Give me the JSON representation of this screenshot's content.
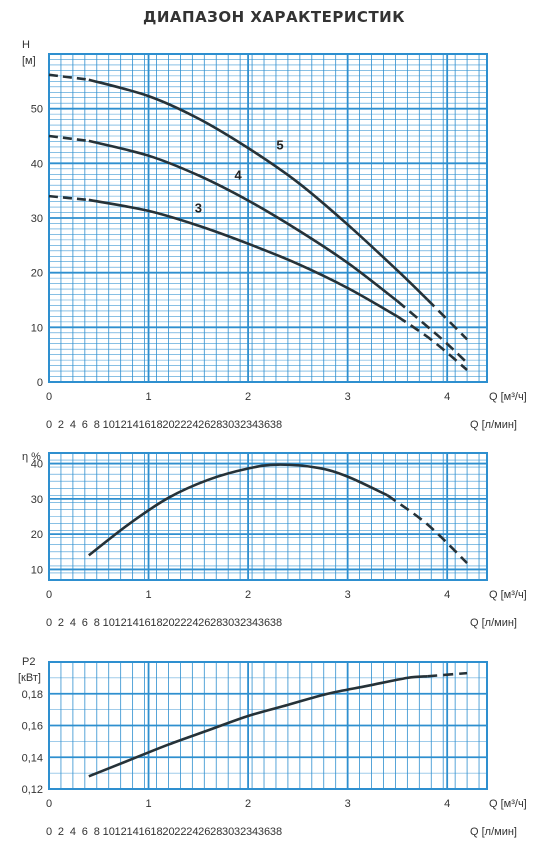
{
  "title": "ДИАПАЗОН ХАРАКТЕРИСТИК",
  "colors": {
    "grid": "#2e8fcf",
    "curve": "#263238"
  },
  "q_m3h": {
    "label": "Q [м³/ч]",
    "ticks": [
      "0",
      "1",
      "2",
      "3",
      "4"
    ]
  },
  "q_lmin": {
    "label": "Q [л/мин]",
    "ticks": [
      "0",
      "2",
      "4",
      "6",
      "8",
      "10",
      "12",
      "14",
      "16",
      "18",
      "20",
      "22",
      "24",
      "26",
      "28",
      "30",
      "32",
      "34",
      "36",
      "38"
    ]
  },
  "chart_data": [
    {
      "type": "line",
      "ylabel": "H",
      "yunit": "[м]",
      "xlabel": "Q [м³/ч]",
      "xlim": [
        0,
        4.4
      ],
      "ylim": [
        0,
        60
      ],
      "yticks": [
        "0",
        "10",
        "20",
        "30",
        "40",
        "50"
      ],
      "grid": true,
      "series": [
        {
          "name": "3",
          "x": [
            0,
            0.4,
            1.0,
            1.5,
            2.0,
            2.5,
            3.0,
            3.5,
            3.85,
            4.2
          ],
          "y": [
            34,
            33.3,
            31.3,
            28.6,
            25.3,
            21.6,
            17.2,
            12.0,
            7.6,
            2.2
          ],
          "dash_from": 3.8,
          "label_at": [
            1.5,
            31
          ]
        },
        {
          "name": "4",
          "x": [
            0,
            0.4,
            1.0,
            1.5,
            2.0,
            2.5,
            3.0,
            3.5,
            3.95,
            4.2
          ],
          "y": [
            45,
            44.1,
            41.4,
            37.8,
            33.2,
            27.8,
            21.8,
            14.8,
            7.8,
            3.5
          ],
          "dash_from": 3.8,
          "label_at": [
            1.9,
            37
          ]
        },
        {
          "name": "5",
          "x": [
            0,
            0.4,
            1.0,
            1.5,
            2.0,
            2.5,
            3.0,
            3.5,
            3.8,
            4.2
          ],
          "y": [
            56.2,
            55.3,
            52.3,
            48.2,
            42.8,
            36.5,
            28.8,
            20.4,
            15.1,
            7.8
          ],
          "dash_from": 3.8,
          "label_at": [
            2.32,
            42.5
          ]
        }
      ]
    },
    {
      "type": "line",
      "ylabel": "η %",
      "xlabel": "Q [м³/ч]",
      "xlim": [
        0,
        4.4
      ],
      "ylim": [
        7,
        43
      ],
      "yticks": [
        "10",
        "20",
        "30",
        "40"
      ],
      "grid": true,
      "series": [
        {
          "x": [
            0.4,
            0.8,
            1.2,
            1.6,
            2.0,
            2.3,
            2.7,
            3.0,
            3.4,
            3.8,
            4.2
          ],
          "y": [
            14,
            22.8,
            30.3,
            35.4,
            38.6,
            39.7,
            38.8,
            36.3,
            31.0,
            22.8,
            11.8
          ],
          "dash_from": 3.75
        }
      ]
    },
    {
      "type": "line",
      "ylabel": "P2",
      "yunit": "[кВт]",
      "xlabel": "Q [м³/ч]",
      "xlim": [
        0,
        4.4
      ],
      "ylim": [
        0.12,
        0.2
      ],
      "yticks": [
        "0,12",
        "0,14",
        "0,16",
        "0,18"
      ],
      "grid": true,
      "series": [
        {
          "x": [
            0.4,
            0.8,
            1.2,
            1.6,
            2.0,
            2.4,
            2.8,
            3.2,
            3.6,
            3.8,
            4.2
          ],
          "y": [
            0.128,
            0.138,
            0.148,
            0.157,
            0.166,
            0.173,
            0.18,
            0.185,
            0.19,
            0.191,
            0.193
          ],
          "dash_from": 3.8
        }
      ]
    }
  ]
}
